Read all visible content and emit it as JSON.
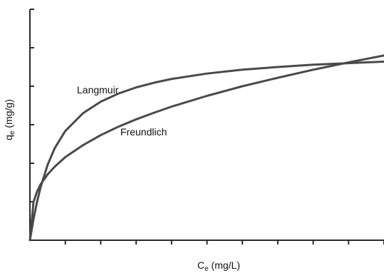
{
  "chart_data": {
    "type": "line",
    "title": "",
    "xlabel": "Cₑ (mg/L)",
    "ylabel": "qₑ (mg/g)",
    "xlim": [
      0,
      10
    ],
    "ylim": [
      0,
      6
    ],
    "x_ticks": 10,
    "y_ticks": 6,
    "grid": false,
    "legend": "none",
    "series": [
      {
        "name": "Langmuir",
        "x": [
          0,
          0.1,
          0.2,
          0.3,
          0.5,
          0.7,
          1.0,
          1.5,
          2.0,
          2.5,
          3.0,
          3.5,
          4.0,
          5.0,
          6.0,
          7.0,
          8.0,
          9.0,
          10.0
        ],
        "y": [
          0,
          0.54,
          0.99,
          1.37,
          1.96,
          2.39,
          2.84,
          3.3,
          3.6,
          3.81,
          3.97,
          4.09,
          4.19,
          4.33,
          4.43,
          4.5,
          4.56,
          4.6,
          4.64
        ]
      },
      {
        "name": "Freundlich",
        "x": [
          0,
          0.1,
          0.2,
          0.3,
          0.5,
          0.7,
          1.0,
          1.5,
          2.0,
          2.5,
          3.0,
          3.5,
          4.0,
          5.0,
          6.0,
          7.0,
          8.0,
          9.0,
          10.0
        ],
        "y": [
          0,
          0.99,
          1.26,
          1.45,
          1.71,
          1.91,
          2.16,
          2.47,
          2.73,
          2.95,
          3.14,
          3.31,
          3.47,
          3.75,
          4.0,
          4.22,
          4.43,
          4.62,
          4.8
        ]
      }
    ],
    "annotations": [
      {
        "text": "Langmuir",
        "series": "Langmuir"
      },
      {
        "text": "Freundlich",
        "series": "Freundlich"
      }
    ]
  },
  "labels": {
    "xlabel_main": "C",
    "xlabel_sub": "e",
    "xlabel_rest": " (mg/L)",
    "ylabel_main": "q",
    "ylabel_sub": "e",
    "ylabel_rest": " (mg/g)"
  }
}
